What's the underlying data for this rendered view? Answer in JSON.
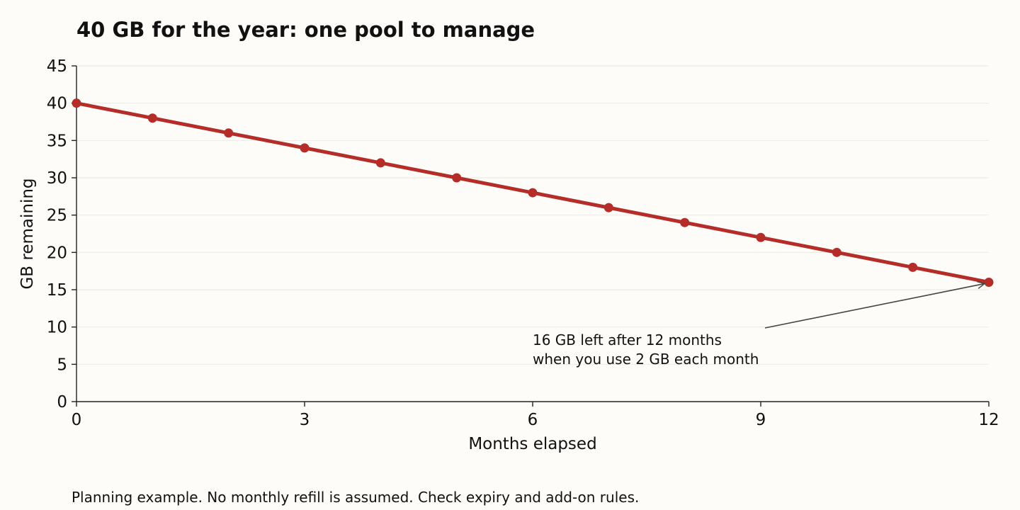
{
  "chart_data": {
    "type": "line",
    "title": "40 GB for the year: one pool to manage",
    "xlabel": "Months elapsed",
    "ylabel": "GB remaining",
    "xlim": [
      0,
      12
    ],
    "ylim": [
      0,
      45
    ],
    "x_ticks": [
      0,
      3,
      6,
      9,
      12
    ],
    "y_ticks": [
      0,
      5,
      10,
      15,
      20,
      25,
      30,
      35,
      40,
      45
    ],
    "grid": "horizontal",
    "series": [
      {
        "x": [
          0,
          1,
          2,
          3,
          4,
          5,
          6,
          7,
          8,
          9,
          10,
          11,
          12
        ],
        "values": [
          40,
          38,
          36,
          34,
          32,
          30,
          28,
          26,
          24,
          22,
          20,
          18,
          16
        ],
        "color": "#b52d28"
      }
    ],
    "annotation": {
      "lines": [
        "16 GB left after 12 months",
        "when you use 2 GB each month"
      ],
      "points_to": {
        "x": 12,
        "y": 16
      }
    },
    "footnote": "Planning example. No monthly refill is assumed. Check expiry and add-on rules."
  }
}
